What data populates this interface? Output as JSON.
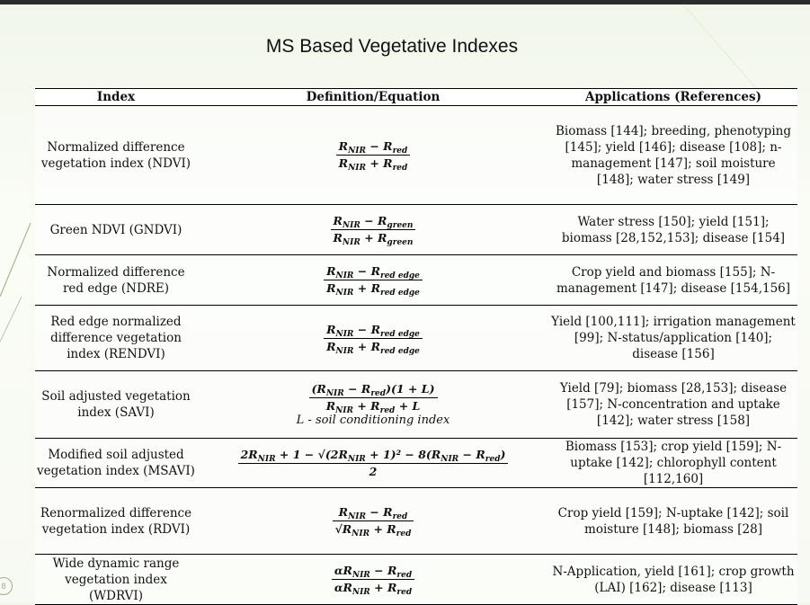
{
  "slide": {
    "title": "MS Based Vegetative Indexes",
    "slide_number": "8"
  },
  "table": {
    "headers": [
      "Index",
      "Definition/Equation",
      "Applications (References)"
    ],
    "rows": [
      {
        "index": "Normalized difference vegetation index (NDVI)",
        "equation": {
          "num": "R_NIR − R_red",
          "den": "R_NIR + R_red"
        },
        "applications": "Biomass [144]; breeding, phenotyping [145]; yield [146]; disease [108]; n-management [147]; soil moisture [148]; water stress [149]"
      },
      {
        "index": "Green NDVI (GNDVI)",
        "equation": {
          "num": "R_NIR − R_green",
          "den": "R_NIR + R_green"
        },
        "applications": "Water stress [150]; yield [151]; biomass [28,152,153]; disease [154]"
      },
      {
        "index": "Normalized difference red edge (NDRE)",
        "equation": {
          "num": "R_NIR − R_red edge",
          "den": "R_NIR + R_red edge"
        },
        "applications": "Crop yield and biomass [155]; N-management [147]; disease [154,156]"
      },
      {
        "index": "Red edge normalized difference vegetation index (RENDVI)",
        "equation": {
          "num": "R_NIR − R_red edge",
          "den": "R_NIR + R_red edge"
        },
        "applications": "Yield [100,111]; irrigation management [99]; N-status/application [140]; disease [156]"
      },
      {
        "index": "Soil adjusted vegetation index (SAVI)",
        "equation": {
          "num": "(R_NIR − R_red)(1 + L)",
          "den": "R_NIR + R_red + L",
          "note": "L - soil conditioning index"
        },
        "applications": "Yield [79]; biomass [28,153]; disease [157]; N-concentration and uptake [142]; water stress [158]"
      },
      {
        "index": "Modified soil adjusted vegetation index (MSAVI)",
        "equation": {
          "num": "2R_NIR + 1 − √((2R_NIR + 1)² − 8(R_NIR − R_red))",
          "den": "2"
        },
        "applications": "Biomass [153]; crop yield [159]; N-uptake [142]; chlorophyll content [112,160]"
      },
      {
        "index": "Renormalized difference vegetation index (RDVI)",
        "equation": {
          "num": "R_NIR − R_red",
          "den": "√(R_NIR + R_red)"
        },
        "applications": "Crop yield [159]; N-uptake [142]; soil moisture [148]; biomass [28]"
      },
      {
        "index": "Wide dynamic range vegetation index (WDRVI)",
        "equation": {
          "num": "αR_NIR − R_red",
          "den": "αR_NIR + R_red"
        },
        "applications": "N-Application, yield [161]; crop growth (LAI) [162]; disease [113]"
      }
    ]
  },
  "colors": {
    "background": "#f4f8ee",
    "top_bar": "#2b2b2b",
    "decoration": "#9fb08a"
  }
}
